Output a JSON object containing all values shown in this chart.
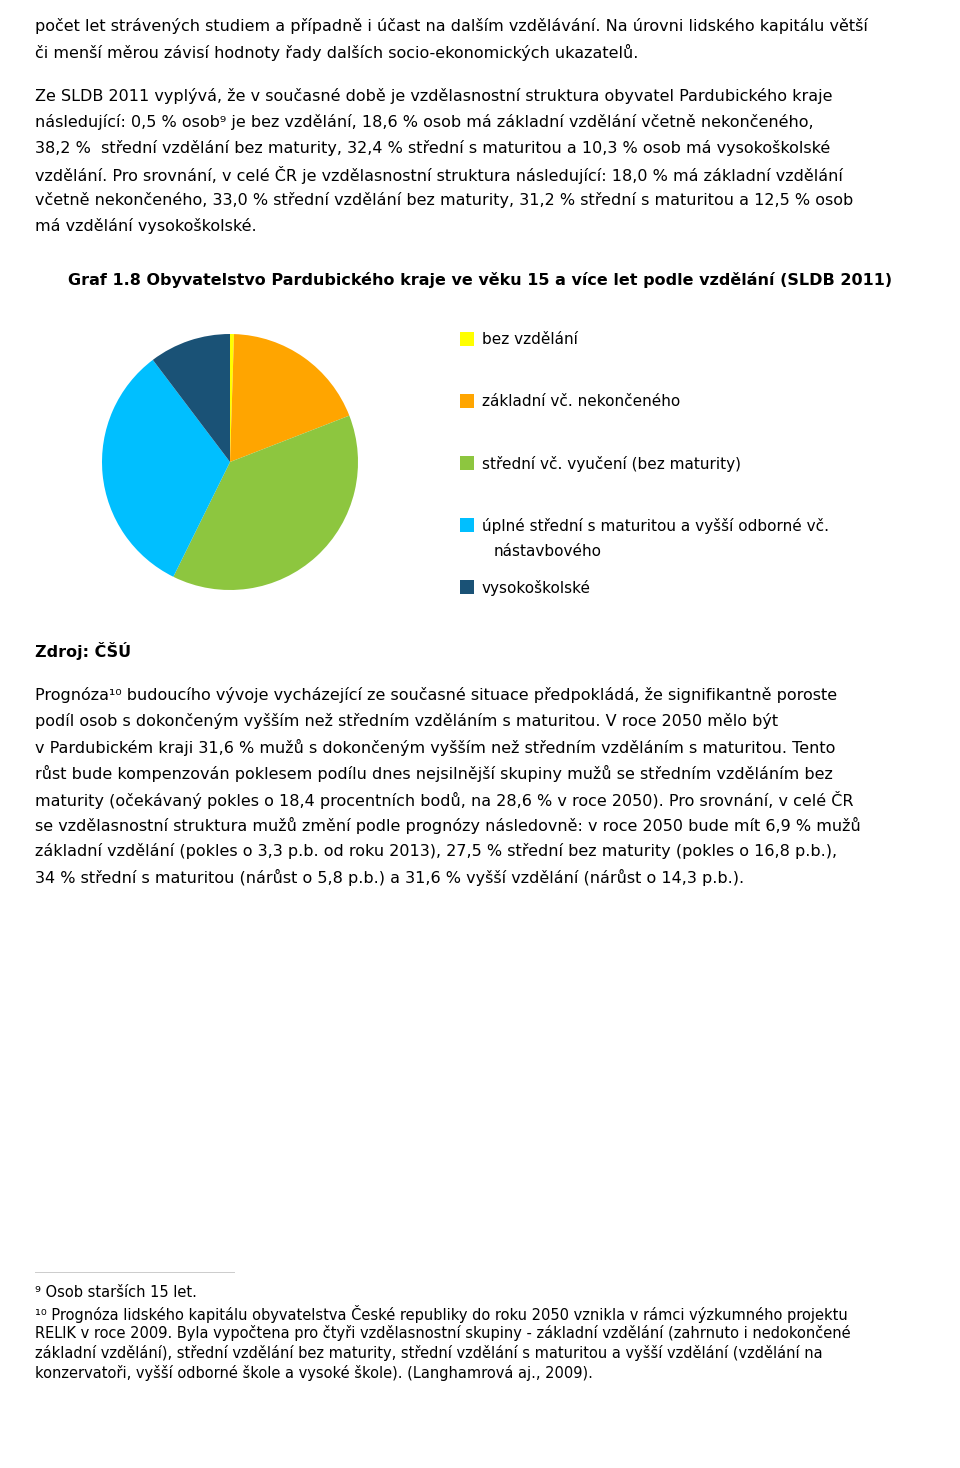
{
  "title": "Graf 1.8 Obyvatelstvo Pardubického kraje ve věku 15 a více let podle vzdělání (SLDB 2011)",
  "pie_values": [
    0.5,
    18.6,
    38.2,
    32.4,
    10.3
  ],
  "pie_colors": [
    "#FFFF00",
    "#FFA500",
    "#8DC63F",
    "#00BFFF",
    "#1A5276"
  ],
  "pie_labels_line1": [
    "bez vzdělání",
    "základní vč. nekončeného",
    "střední vč. vyučení (bez maturity)",
    "úplné střední s maturitou a vyšší odborné vč.",
    "vysokoškolské"
  ],
  "pie_labels_line2": [
    "",
    "",
    "",
    "nástavbového",
    ""
  ],
  "source": "Zdroj: ČŠÚ",
  "para1_line1": "počet let strávených studiem a případně i účast na dalším vzdělávání. Na úrovni lidského kapitálu větší",
  "para1_line2": "či menší měrou závisí hodnoty řady dalších socio-ekonomických ukazatelů.",
  "para2_lines": [
    "Ze SLDB 2011 vyplývá, že v současné době je vzdělasnostní struktura obyvatel Pardubického kraje",
    "následující: 0,5 % osob⁹ je bez vzdělání, 18,6 % osob má základní vzdělání včetně nekončeného,",
    "38,2 %  střední vzdělání bez maturity, 32,4 % střední s maturitou a 10,3 % osob má vysokoškolské",
    "vzdělání. Pro srovnání, v celé ČR je vzdělasnostní struktura následující: 18,0 % má základní vzdělání",
    "včetně nekončeného, 33,0 % střední vzdělání bez maturity, 31,2 % střední s maturitou a 12,5 % osob",
    "má vzdělání vysokoškolské."
  ],
  "para3_lines": [
    "Prognóza¹⁰ budoucího vývoje vycházející ze současné situace předpokládá, že signifikantně poroste",
    "podíl osob s dokončeným vyšším než středním vzděláním s maturitou. V roce 2050 mělo být",
    "v Pardubickém kraji 31,6 % mužů s dokončeným vyšším než středním vzděláním s maturitou. Tento",
    "růst bude kompenzován poklesem podílu dnes nejsilnější skupiny mužů se středním vzděláním bez",
    "maturity (očekávaný pokles o 18,4 procentních bodů, na 28,6 % v roce 2050). Pro srovnání, v celé ČR",
    "se vzdělasnostní struktura mužů změní podle prognózy následovně: v roce 2050 bude mít 6,9 % mužů",
    "základní vzdělání (pokles o 3,3 p.b. od roku 2013), 27,5 % střední bez maturity (pokles o 16,8 p.b.),",
    "34 % střední s maturitou (nárůst o 5,8 p.b.) a 31,6 % vyšší vzdělání (nárůst o 14,3 p.b.)."
  ],
  "footnote9": "⁹ Osob starších 15 let.",
  "footnote10_lines": [
    "¹⁰ Prognóza lidského kapitálu obyvatelstva České republiky do roku 2050 vznikla v rámci výzkumného projektu",
    "RELIK v roce 2009. Byla vypočtena pro čtyři vzdělasnostní skupiny - základní vzdělání (zahrnuto i nedokončené",
    "základní vzdělání), střední vzdělání bez maturity, střední vzdělání s maturitou a vyšší vzdělání (vzdělání na",
    "konzervatoři, vyšší odborné škole a vysoké škole). (Langhamrová aj., 2009)."
  ],
  "text_color": "#000000",
  "bg_color": "#ffffff",
  "body_fontsize": 11.5,
  "title_fontsize": 11.5,
  "legend_fontsize": 11.0,
  "source_fontsize": 11.5,
  "footnote_fontsize": 10.5
}
